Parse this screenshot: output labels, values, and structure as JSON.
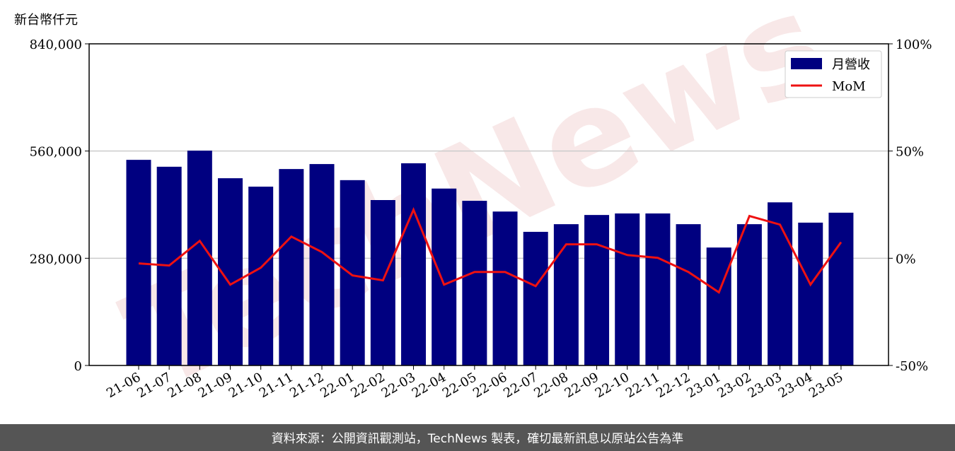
{
  "chart_data": {
    "type": "bar",
    "y_label": "新台幣仟元",
    "watermark": "TechNews",
    "categories": [
      "21-06",
      "21-07",
      "21-08",
      "21-09",
      "21-10",
      "21-11",
      "21-12",
      "22-01",
      "22-02",
      "22-03",
      "22-04",
      "22-05",
      "22-06",
      "22-07",
      "22-08",
      "22-09",
      "22-10",
      "22-11",
      "22-12",
      "23-01",
      "23-02",
      "23-03",
      "23-04",
      "23-05"
    ],
    "series": [
      {
        "name": "月營收",
        "type": "bar",
        "color": "#000080",
        "values": [
          537000,
          519000,
          561000,
          489000,
          467000,
          513000,
          526000,
          484000,
          432000,
          528000,
          462000,
          430000,
          402000,
          349000,
          369000,
          393000,
          397000,
          397000,
          369000,
          308000,
          369000,
          426000,
          373000,
          399000
        ]
      },
      {
        "name": "MoM",
        "type": "line",
        "axis": "y2",
        "color": "#ee1111",
        "values": [
          -2.4,
          -3.4,
          8.1,
          -12.3,
          -4.4,
          10.1,
          2.9,
          -8.0,
          -10.3,
          22.6,
          -12.3,
          -6.4,
          -6.4,
          -13.0,
          6.5,
          6.5,
          1.5,
          0.2,
          -6.4,
          -15.9,
          19.7,
          15.7,
          -12.3,
          7.5
        ]
      }
    ],
    "ylim": [
      0,
      840000
    ],
    "yticks": [
      0,
      {
        "value": 280000,
        "label": "280,000"
      },
      {
        "value": 560000,
        "label": "560,000"
      },
      {
        "value": 840000,
        "label": "840,000"
      }
    ],
    "y2lim": [
      -50,
      100
    ],
    "y2ticks": [
      {
        "value": -50,
        "label": "-50%"
      },
      {
        "value": 0,
        "label": "0%"
      },
      {
        "value": 50,
        "label": "50%"
      },
      {
        "value": 100,
        "label": "100%"
      }
    ],
    "grid": true,
    "legend": "upper right",
    "footer": "資料來源：公開資訊觀測站，TechNews 製表，確切最新訊息以原站公告為準"
  }
}
